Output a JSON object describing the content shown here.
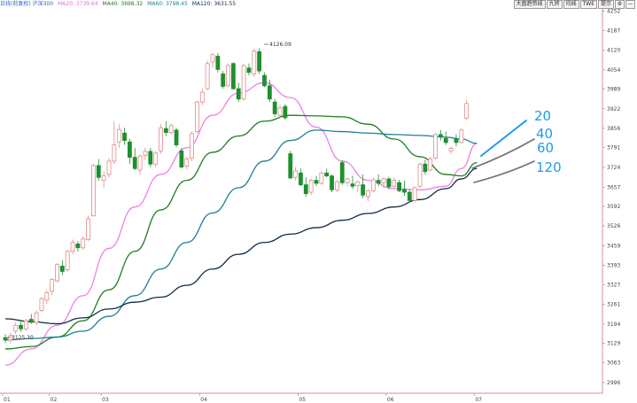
{
  "header": {
    "instrument": "日线(前复权) 沪深300",
    "ma_readouts": [
      {
        "text": "MA20: 3739.64",
        "color": "#e36be0"
      },
      {
        "text": "MA40: 3698.32",
        "color": "#1d7a1d"
      },
      {
        "text": "MA60: 3798.45",
        "color": "#1b7f94"
      },
      {
        "text": "MA120: 3631.55",
        "color": "#102a43"
      }
    ],
    "toolbar": [
      "大盘趋势线",
      "九转",
      "均线",
      "TWE",
      "提示"
    ]
  },
  "annotations": {
    "high": "4126.09",
    "low": "3125.30"
  },
  "ma_labels": [
    "20",
    "40",
    "60",
    "120"
  ],
  "colors": {
    "up": "#e08a8a",
    "down": "#1f8f2f",
    "ma20": "#ee7fe8",
    "ma40": "#1e7d1e",
    "ma60": "#1c7f98",
    "ma120": "#0f2b45",
    "hand_label": "#1e9be8",
    "axis": "#cf9090"
  },
  "chart_data": {
    "type": "candlestick",
    "title": "",
    "y_ticks": [
      "4252",
      "4187",
      "4120",
      "4054",
      "3989",
      "3922",
      "3856",
      "3791",
      "3724",
      "3657",
      "3592",
      "3526",
      "3459",
      "3393",
      "3327",
      "3261",
      "3194",
      "3129",
      "3063",
      "2996"
    ],
    "x_ticks": [
      "01",
      "02",
      "03",
      "04",
      "05",
      "06",
      "07"
    ],
    "ylim": [
      2960,
      4260
    ],
    "grid": false,
    "candles": [
      {
        "o": 3148,
        "h": 3160,
        "l": 3130,
        "c": 3140
      },
      {
        "o": 3140,
        "h": 3165,
        "l": 3128,
        "c": 3155
      },
      {
        "o": 3170,
        "h": 3200,
        "l": 3160,
        "c": 3190
      },
      {
        "o": 3190,
        "h": 3208,
        "l": 3168,
        "c": 3178
      },
      {
        "o": 3178,
        "h": 3212,
        "l": 3170,
        "c": 3205
      },
      {
        "o": 3210,
        "h": 3228,
        "l": 3195,
        "c": 3200
      },
      {
        "o": 3200,
        "h": 3240,
        "l": 3190,
        "c": 3232
      },
      {
        "o": 3240,
        "h": 3285,
        "l": 3235,
        "c": 3280
      },
      {
        "o": 3275,
        "h": 3310,
        "l": 3262,
        "c": 3300
      },
      {
        "o": 3305,
        "h": 3350,
        "l": 3292,
        "c": 3345
      },
      {
        "o": 3340,
        "h": 3400,
        "l": 3335,
        "c": 3395
      },
      {
        "o": 3390,
        "h": 3410,
        "l": 3360,
        "c": 3372
      },
      {
        "o": 3378,
        "h": 3445,
        "l": 3370,
        "c": 3440
      },
      {
        "o": 3440,
        "h": 3480,
        "l": 3430,
        "c": 3470
      },
      {
        "o": 3465,
        "h": 3475,
        "l": 3440,
        "c": 3452
      },
      {
        "o": 3452,
        "h": 3490,
        "l": 3445,
        "c": 3482
      },
      {
        "o": 3480,
        "h": 3560,
        "l": 3475,
        "c": 3550
      },
      {
        "o": 3560,
        "h": 3735,
        "l": 3558,
        "c": 3730
      },
      {
        "o": 3730,
        "h": 3752,
        "l": 3680,
        "c": 3690
      },
      {
        "o": 3680,
        "h": 3710,
        "l": 3655,
        "c": 3695
      },
      {
        "o": 3700,
        "h": 3755,
        "l": 3690,
        "c": 3745
      },
      {
        "o": 3745,
        "h": 3880,
        "l": 3735,
        "c": 3800
      },
      {
        "o": 3810,
        "h": 3870,
        "l": 3790,
        "c": 3852
      },
      {
        "o": 3840,
        "h": 3858,
        "l": 3800,
        "c": 3815
      },
      {
        "o": 3810,
        "h": 3820,
        "l": 3735,
        "c": 3758
      },
      {
        "o": 3758,
        "h": 3790,
        "l": 3715,
        "c": 3720
      },
      {
        "o": 3715,
        "h": 3768,
        "l": 3700,
        "c": 3762
      },
      {
        "o": 3765,
        "h": 3790,
        "l": 3750,
        "c": 3778
      },
      {
        "o": 3778,
        "h": 3790,
        "l": 3725,
        "c": 3735
      },
      {
        "o": 3735,
        "h": 3780,
        "l": 3725,
        "c": 3772
      },
      {
        "o": 3780,
        "h": 3870,
        "l": 3770,
        "c": 3858
      },
      {
        "o": 3855,
        "h": 3880,
        "l": 3830,
        "c": 3842
      },
      {
        "o": 3842,
        "h": 3872,
        "l": 3835,
        "c": 3865
      },
      {
        "o": 3850,
        "h": 3858,
        "l": 3792,
        "c": 3800
      },
      {
        "o": 3780,
        "h": 3790,
        "l": 3720,
        "c": 3725
      },
      {
        "o": 3728,
        "h": 3760,
        "l": 3718,
        "c": 3752
      },
      {
        "o": 3755,
        "h": 3845,
        "l": 3745,
        "c": 3838
      },
      {
        "o": 3845,
        "h": 3950,
        "l": 3840,
        "c": 3945
      },
      {
        "o": 3945,
        "h": 3990,
        "l": 3935,
        "c": 3978
      },
      {
        "o": 3990,
        "h": 4085,
        "l": 3985,
        "c": 4075
      },
      {
        "o": 4080,
        "h": 4110,
        "l": 4060,
        "c": 4105
      },
      {
        "o": 4100,
        "h": 4110,
        "l": 4045,
        "c": 4055
      },
      {
        "o": 4040,
        "h": 4050,
        "l": 3990,
        "c": 3998
      },
      {
        "o": 4000,
        "h": 4075,
        "l": 3995,
        "c": 4068
      },
      {
        "o": 4075,
        "h": 4080,
        "l": 3985,
        "c": 3990
      },
      {
        "o": 3990,
        "h": 4010,
        "l": 3945,
        "c": 3955
      },
      {
        "o": 3955,
        "h": 4075,
        "l": 3950,
        "c": 4068
      },
      {
        "o": 4060,
        "h": 4075,
        "l": 4035,
        "c": 4045
      },
      {
        "o": 4040,
        "h": 4125,
        "l": 4030,
        "c": 4118
      },
      {
        "o": 4115,
        "h": 4126,
        "l": 4040,
        "c": 4050
      },
      {
        "o": 4035,
        "h": 4045,
        "l": 3995,
        "c": 4000
      },
      {
        "o": 4000,
        "h": 4020,
        "l": 3945,
        "c": 3955
      },
      {
        "o": 3945,
        "h": 3955,
        "l": 3895,
        "c": 3905
      },
      {
        "o": 3900,
        "h": 3935,
        "l": 3890,
        "c": 3925
      },
      {
        "o": 3930,
        "h": 3938,
        "l": 3885,
        "c": 3892
      },
      {
        "o": 3770,
        "h": 3780,
        "l": 3685,
        "c": 3688
      },
      {
        "o": 3690,
        "h": 3725,
        "l": 3680,
        "c": 3712
      },
      {
        "o": 3705,
        "h": 3720,
        "l": 3660,
        "c": 3665
      },
      {
        "o": 3665,
        "h": 3690,
        "l": 3625,
        "c": 3635
      },
      {
        "o": 3640,
        "h": 3685,
        "l": 3630,
        "c": 3680
      },
      {
        "o": 3680,
        "h": 3695,
        "l": 3660,
        "c": 3670
      },
      {
        "o": 3670,
        "h": 3710,
        "l": 3665,
        "c": 3705
      },
      {
        "o": 3705,
        "h": 3720,
        "l": 3690,
        "c": 3695
      },
      {
        "o": 3695,
        "h": 3700,
        "l": 3640,
        "c": 3648
      },
      {
        "o": 3648,
        "h": 3680,
        "l": 3640,
        "c": 3675
      },
      {
        "o": 3740,
        "h": 3748,
        "l": 3665,
        "c": 3672
      },
      {
        "o": 3672,
        "h": 3690,
        "l": 3660,
        "c": 3685
      },
      {
        "o": 3668,
        "h": 3695,
        "l": 3650,
        "c": 3660
      },
      {
        "o": 3662,
        "h": 3680,
        "l": 3640,
        "c": 3675
      },
      {
        "o": 3665,
        "h": 3700,
        "l": 3620,
        "c": 3630
      },
      {
        "o": 3625,
        "h": 3650,
        "l": 3610,
        "c": 3645
      },
      {
        "o": 3645,
        "h": 3690,
        "l": 3640,
        "c": 3682
      },
      {
        "o": 3680,
        "h": 3700,
        "l": 3660,
        "c": 3670
      },
      {
        "o": 3672,
        "h": 3690,
        "l": 3655,
        "c": 3685
      },
      {
        "o": 3685,
        "h": 3692,
        "l": 3650,
        "c": 3658
      },
      {
        "o": 3660,
        "h": 3690,
        "l": 3650,
        "c": 3680
      },
      {
        "o": 3672,
        "h": 3682,
        "l": 3640,
        "c": 3645
      },
      {
        "o": 3650,
        "h": 3680,
        "l": 3628,
        "c": 3640
      },
      {
        "o": 3640,
        "h": 3650,
        "l": 3605,
        "c": 3612
      },
      {
        "o": 3612,
        "h": 3660,
        "l": 3605,
        "c": 3655
      },
      {
        "o": 3660,
        "h": 3740,
        "l": 3655,
        "c": 3735
      },
      {
        "o": 3735,
        "h": 3750,
        "l": 3700,
        "c": 3710
      },
      {
        "o": 3715,
        "h": 3760,
        "l": 3710,
        "c": 3752
      },
      {
        "o": 3755,
        "h": 3840,
        "l": 3750,
        "c": 3835
      },
      {
        "o": 3835,
        "h": 3850,
        "l": 3815,
        "c": 3828
      },
      {
        "o": 3822,
        "h": 3845,
        "l": 3800,
        "c": 3808
      },
      {
        "o": 3780,
        "h": 3795,
        "l": 3770,
        "c": 3788
      },
      {
        "o": 3820,
        "h": 3836,
        "l": 3795,
        "c": 3808
      },
      {
        "o": 3808,
        "h": 3855,
        "l": 3805,
        "c": 3850
      },
      {
        "o": 3890,
        "h": 3952,
        "l": 3885,
        "c": 3940
      }
    ],
    "series": [
      {
        "name": "MA20",
        "x": [
          0,
          5,
          10,
          15,
          20,
          25,
          30,
          35,
          40,
          45,
          50,
          55,
          60,
          65,
          70,
          75,
          80,
          85,
          88,
          91
        ],
        "values": [
          3055,
          3110,
          3190,
          3290,
          3450,
          3590,
          3700,
          3790,
          3900,
          3975,
          4010,
          3960,
          3860,
          3745,
          3680,
          3652,
          3648,
          3660,
          3720,
          3805
        ]
      },
      {
        "name": "MA40",
        "x": [
          0,
          5,
          10,
          15,
          20,
          25,
          30,
          35,
          40,
          45,
          50,
          55,
          60,
          65,
          70,
          75,
          80,
          85,
          88,
          91
        ],
        "values": [
          3110,
          3118,
          3150,
          3205,
          3310,
          3440,
          3580,
          3680,
          3775,
          3830,
          3880,
          3900,
          3898,
          3895,
          3870,
          3820,
          3760,
          3700,
          3695,
          3740
        ]
      },
      {
        "name": "MA60",
        "x": [
          0,
          5,
          10,
          15,
          20,
          25,
          30,
          35,
          40,
          45,
          50,
          55,
          60,
          65,
          70,
          75,
          80,
          85,
          88,
          91
        ],
        "values": [
          3140,
          3145,
          3150,
          3170,
          3220,
          3290,
          3380,
          3470,
          3570,
          3655,
          3745,
          3815,
          3850,
          3845,
          3840,
          3835,
          3832,
          3826,
          3820,
          3805
        ]
      },
      {
        "name": "MA120",
        "x": [
          0,
          5,
          10,
          15,
          20,
          25,
          30,
          35,
          40,
          45,
          50,
          55,
          60,
          65,
          70,
          75,
          80,
          85,
          88,
          91
        ],
        "values": [
          3212,
          3202,
          3195,
          3215,
          3245,
          3268,
          3285,
          3325,
          3380,
          3430,
          3470,
          3498,
          3520,
          3545,
          3568,
          3590,
          3615,
          3652,
          3685,
          3720
        ]
      }
    ]
  }
}
